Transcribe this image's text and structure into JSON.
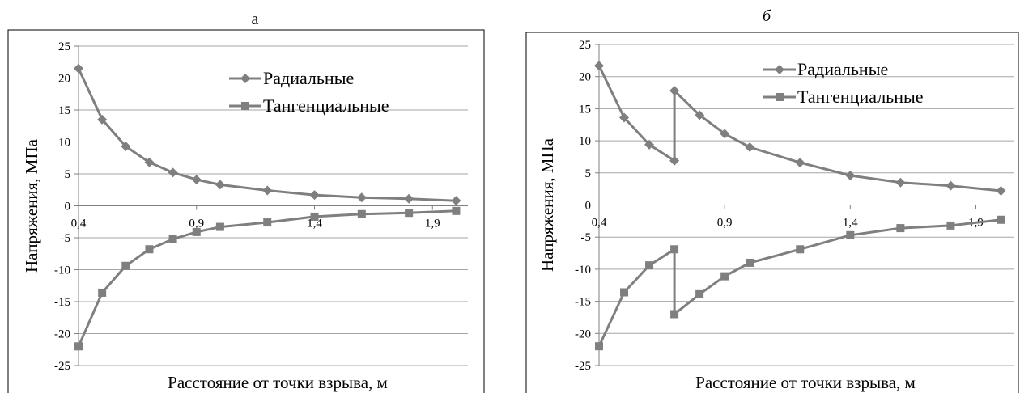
{
  "chart_data": [
    {
      "type": "line",
      "caption": "а",
      "ylabel": "Напряжения, МПа",
      "xlabel": "Расстояние от точки взрыва, м",
      "ylim": [
        -25,
        25
      ],
      "yticks": [
        -25,
        -20,
        -15,
        -10,
        -5,
        0,
        5,
        10,
        15,
        20,
        25
      ],
      "xlim": [
        0.4,
        2.05
      ],
      "xticks": [
        0.4,
        0.9,
        1.4,
        1.9
      ],
      "xtick_labels": [
        "0,4",
        "0,9",
        "1,4",
        "1,9"
      ],
      "grid": "horizontal",
      "legend": "top-right",
      "series": [
        {
          "name": "Радиальные",
          "marker": "diamond",
          "color": "#7f7f7f",
          "x": [
            0.4,
            0.5,
            0.6,
            0.7,
            0.8,
            0.9,
            1.0,
            1.2,
            1.4,
            1.6,
            1.8,
            2.0
          ],
          "y": [
            21.5,
            13.5,
            9.3,
            6.8,
            5.2,
            4.1,
            3.3,
            2.4,
            1.7,
            1.3,
            1.1,
            0.8
          ]
        },
        {
          "name": "Тангенциальные",
          "marker": "square",
          "color": "#7f7f7f",
          "x": [
            0.4,
            0.5,
            0.6,
            0.7,
            0.8,
            0.9,
            1.0,
            1.2,
            1.4,
            1.6,
            1.8,
            2.0
          ],
          "y": [
            -22.0,
            -13.6,
            -9.4,
            -6.8,
            -5.2,
            -4.1,
            -3.3,
            -2.6,
            -1.7,
            -1.3,
            -1.1,
            -0.8
          ]
        }
      ]
    },
    {
      "type": "line",
      "caption": "б",
      "ylabel": "Напряжения, МПа",
      "xlabel": "Расстояние от точки взрыва, м",
      "ylim": [
        -25,
        25
      ],
      "yticks": [
        -25,
        -20,
        -15,
        -10,
        -5,
        0,
        5,
        10,
        15,
        20,
        25
      ],
      "xlim": [
        0.4,
        2.05
      ],
      "xticks": [
        0.4,
        0.9,
        1.4,
        1.9
      ],
      "xtick_labels": [
        "0,4",
        "0,9",
        "1,4",
        "1,9"
      ],
      "grid": "horizontal",
      "legend": "top-right",
      "series": [
        {
          "name": "Радиальные",
          "marker": "diamond",
          "color": "#7f7f7f",
          "x": [
            0.4,
            0.5,
            0.6,
            0.7,
            0.7,
            0.8,
            0.9,
            1.0,
            1.2,
            1.4,
            1.6,
            1.8,
            2.0
          ],
          "y": [
            21.7,
            13.6,
            9.4,
            6.9,
            17.8,
            14.0,
            11.1,
            9.0,
            6.6,
            4.6,
            3.5,
            3.0,
            2.2
          ]
        },
        {
          "name": "Тангенциальные",
          "marker": "square",
          "color": "#7f7f7f",
          "x": [
            0.4,
            0.5,
            0.6,
            0.7,
            0.7,
            0.8,
            0.9,
            1.0,
            1.2,
            1.4,
            1.6,
            1.8,
            2.0
          ],
          "y": [
            -22.0,
            -13.6,
            -9.4,
            -6.9,
            -17.0,
            -13.9,
            -11.1,
            -9.0,
            -6.9,
            -4.7,
            -3.6,
            -3.2,
            -2.3
          ]
        }
      ]
    }
  ]
}
